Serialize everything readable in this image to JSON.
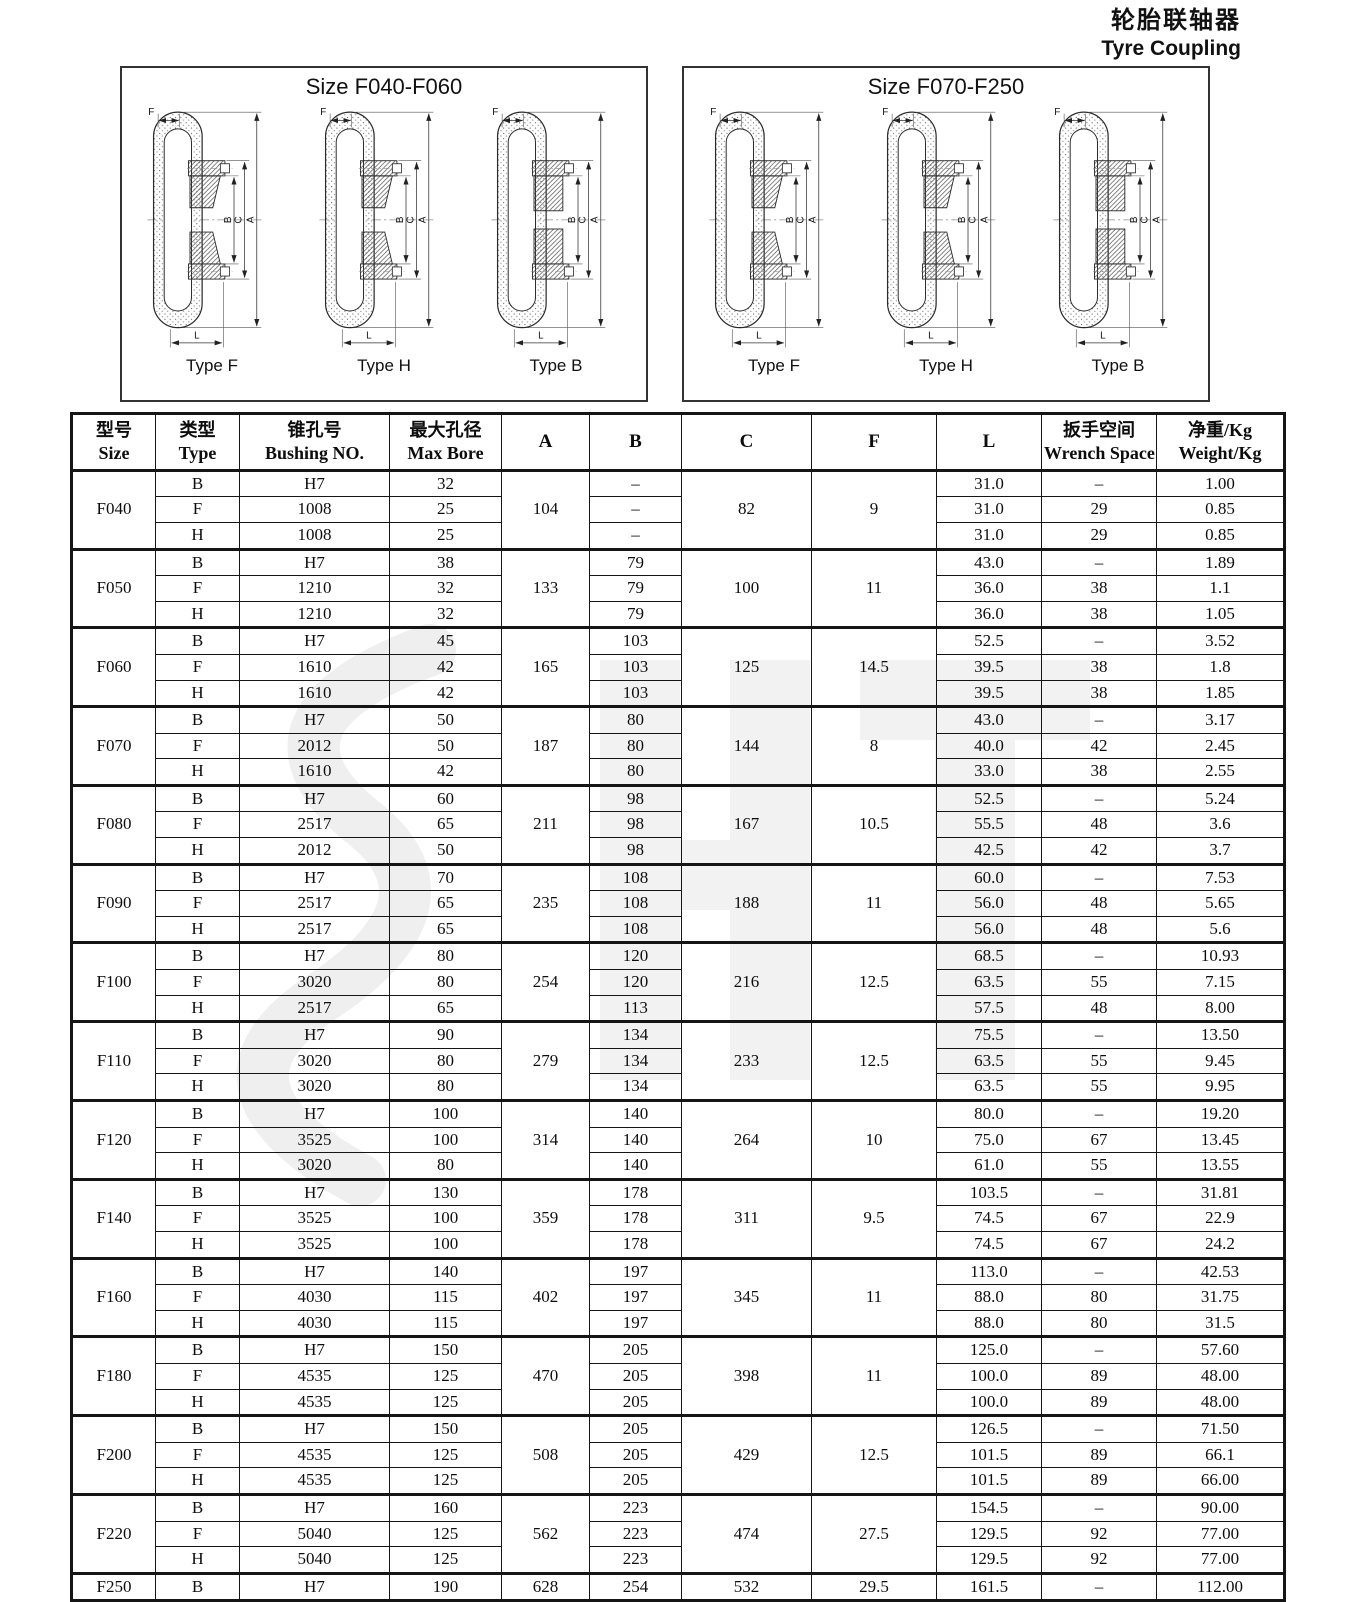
{
  "page": {
    "title_zh": "轮胎联轴器",
    "title_en": "Tyre Coupling"
  },
  "diagram_labels": {
    "f": "F",
    "b": "B",
    "c": "C",
    "a": "A",
    "l": "L"
  },
  "diagrams": [
    {
      "title": "Size F040-F060",
      "types": [
        "Type F",
        "Type H",
        "Type B"
      ]
    },
    {
      "title": "Size F070-F250",
      "types": [
        "Type F",
        "Type H",
        "Type B"
      ]
    }
  ],
  "table": {
    "headers": {
      "size_zh": "型号",
      "size_en": "Size",
      "type_zh": "类型",
      "type_en": "Type",
      "bushing_zh": "锥孔号",
      "bushing_en": "Bushing NO.",
      "bore_zh": "最大孔径",
      "bore_en": "Max Bore",
      "a": "A",
      "b": "B",
      "c": "C",
      "f": "F",
      "l": "L",
      "wrench_zh": "扳手空间",
      "wrench_en": "Wrench Space",
      "weight_zh": "净重/Kg",
      "weight_en": "Weight/Kg"
    },
    "groups": [
      {
        "size": "F040",
        "a": "104",
        "c": "82",
        "f": "9",
        "rows": [
          {
            "type": "B",
            "bushing": "H7",
            "bore": "32",
            "b": "–",
            "l": "31.0",
            "wrench": "–",
            "weight": "1.00"
          },
          {
            "type": "F",
            "bushing": "1008",
            "bore": "25",
            "b": "–",
            "l": "31.0",
            "wrench": "29",
            "weight": "0.85"
          },
          {
            "type": "H",
            "bushing": "1008",
            "bore": "25",
            "b": "–",
            "l": "31.0",
            "wrench": "29",
            "weight": "0.85"
          }
        ]
      },
      {
        "size": "F050",
        "a": "133",
        "c": "100",
        "f": "11",
        "rows": [
          {
            "type": "B",
            "bushing": "H7",
            "bore": "38",
            "b": "79",
            "l": "43.0",
            "wrench": "–",
            "weight": "1.89"
          },
          {
            "type": "F",
            "bushing": "1210",
            "bore": "32",
            "b": "79",
            "l": "36.0",
            "wrench": "38",
            "weight": "1.1"
          },
          {
            "type": "H",
            "bushing": "1210",
            "bore": "32",
            "b": "79",
            "l": "36.0",
            "wrench": "38",
            "weight": "1.05"
          }
        ]
      },
      {
        "size": "F060",
        "a": "165",
        "c": "125",
        "f": "14.5",
        "rows": [
          {
            "type": "B",
            "bushing": "H7",
            "bore": "45",
            "b": "103",
            "l": "52.5",
            "wrench": "–",
            "weight": "3.52"
          },
          {
            "type": "F",
            "bushing": "1610",
            "bore": "42",
            "b": "103",
            "l": "39.5",
            "wrench": "38",
            "weight": "1.8"
          },
          {
            "type": "H",
            "bushing": "1610",
            "bore": "42",
            "b": "103",
            "l": "39.5",
            "wrench": "38",
            "weight": "1.85"
          }
        ]
      },
      {
        "size": "F070",
        "a": "187",
        "c": "144",
        "f": "8",
        "rows": [
          {
            "type": "B",
            "bushing": "H7",
            "bore": "50",
            "b": "80",
            "l": "43.0",
            "wrench": "–",
            "weight": "3.17"
          },
          {
            "type": "F",
            "bushing": "2012",
            "bore": "50",
            "b": "80",
            "l": "40.0",
            "wrench": "42",
            "weight": "2.45"
          },
          {
            "type": "H",
            "bushing": "1610",
            "bore": "42",
            "b": "80",
            "l": "33.0",
            "wrench": "38",
            "weight": "2.55"
          }
        ]
      },
      {
        "size": "F080",
        "a": "211",
        "c": "167",
        "f": "10.5",
        "rows": [
          {
            "type": "B",
            "bushing": "H7",
            "bore": "60",
            "b": "98",
            "l": "52.5",
            "wrench": "–",
            "weight": "5.24"
          },
          {
            "type": "F",
            "bushing": "2517",
            "bore": "65",
            "b": "98",
            "l": "55.5",
            "wrench": "48",
            "weight": "3.6"
          },
          {
            "type": "H",
            "bushing": "2012",
            "bore": "50",
            "b": "98",
            "l": "42.5",
            "wrench": "42",
            "weight": "3.7"
          }
        ]
      },
      {
        "size": "F090",
        "a": "235",
        "c": "188",
        "f": "11",
        "rows": [
          {
            "type": "B",
            "bushing": "H7",
            "bore": "70",
            "b": "108",
            "l": "60.0",
            "wrench": "–",
            "weight": "7.53"
          },
          {
            "type": "F",
            "bushing": "2517",
            "bore": "65",
            "b": "108",
            "l": "56.0",
            "wrench": "48",
            "weight": "5.65"
          },
          {
            "type": "H",
            "bushing": "2517",
            "bore": "65",
            "b": "108",
            "l": "56.0",
            "wrench": "48",
            "weight": "5.6"
          }
        ]
      },
      {
        "size": "F100",
        "a": "254",
        "c": "216",
        "f": "12.5",
        "rows": [
          {
            "type": "B",
            "bushing": "H7",
            "bore": "80",
            "b": "120",
            "l": "68.5",
            "wrench": "–",
            "weight": "10.93"
          },
          {
            "type": "F",
            "bushing": "3020",
            "bore": "80",
            "b": "120",
            "l": "63.5",
            "wrench": "55",
            "weight": "7.15"
          },
          {
            "type": "H",
            "bushing": "2517",
            "bore": "65",
            "b": "113",
            "l": "57.5",
            "wrench": "48",
            "weight": "8.00"
          }
        ]
      },
      {
        "size": "F110",
        "a": "279",
        "c": "233",
        "f": "12.5",
        "rows": [
          {
            "type": "B",
            "bushing": "H7",
            "bore": "90",
            "b": "134",
            "l": "75.5",
            "wrench": "–",
            "weight": "13.50"
          },
          {
            "type": "F",
            "bushing": "3020",
            "bore": "80",
            "b": "134",
            "l": "63.5",
            "wrench": "55",
            "weight": "9.45"
          },
          {
            "type": "H",
            "bushing": "3020",
            "bore": "80",
            "b": "134",
            "l": "63.5",
            "wrench": "55",
            "weight": "9.95"
          }
        ]
      },
      {
        "size": "F120",
        "a": "314",
        "c": "264",
        "f": "10",
        "rows": [
          {
            "type": "B",
            "bushing": "H7",
            "bore": "100",
            "b": "140",
            "l": "80.0",
            "wrench": "–",
            "weight": "19.20"
          },
          {
            "type": "F",
            "bushing": "3525",
            "bore": "100",
            "b": "140",
            "l": "75.0",
            "wrench": "67",
            "weight": "13.45"
          },
          {
            "type": "H",
            "bushing": "3020",
            "bore": "80",
            "b": "140",
            "l": "61.0",
            "wrench": "55",
            "weight": "13.55"
          }
        ]
      },
      {
        "size": "F140",
        "a": "359",
        "c": "311",
        "f": "9.5",
        "rows": [
          {
            "type": "B",
            "bushing": "H7",
            "bore": "130",
            "b": "178",
            "l": "103.5",
            "wrench": "–",
            "weight": "31.81"
          },
          {
            "type": "F",
            "bushing": "3525",
            "bore": "100",
            "b": "178",
            "l": "74.5",
            "wrench": "67",
            "weight": "22.9"
          },
          {
            "type": "H",
            "bushing": "3525",
            "bore": "100",
            "b": "178",
            "l": "74.5",
            "wrench": "67",
            "weight": "24.2"
          }
        ]
      },
      {
        "size": "F160",
        "a": "402",
        "c": "345",
        "f": "11",
        "rows": [
          {
            "type": "B",
            "bushing": "H7",
            "bore": "140",
            "b": "197",
            "l": "113.0",
            "wrench": "–",
            "weight": "42.53"
          },
          {
            "type": "F",
            "bushing": "4030",
            "bore": "115",
            "b": "197",
            "l": "88.0",
            "wrench": "80",
            "weight": "31.75"
          },
          {
            "type": "H",
            "bushing": "4030",
            "bore": "115",
            "b": "197",
            "l": "88.0",
            "wrench": "80",
            "weight": "31.5"
          }
        ]
      },
      {
        "size": "F180",
        "a": "470",
        "c": "398",
        "f": "11",
        "rows": [
          {
            "type": "B",
            "bushing": "H7",
            "bore": "150",
            "b": "205",
            "l": "125.0",
            "wrench": "–",
            "weight": "57.60"
          },
          {
            "type": "F",
            "bushing": "4535",
            "bore": "125",
            "b": "205",
            "l": "100.0",
            "wrench": "89",
            "weight": "48.00"
          },
          {
            "type": "H",
            "bushing": "4535",
            "bore": "125",
            "b": "205",
            "l": "100.0",
            "wrench": "89",
            "weight": "48.00"
          }
        ]
      },
      {
        "size": "F200",
        "a": "508",
        "c": "429",
        "f": "12.5",
        "rows": [
          {
            "type": "B",
            "bushing": "H7",
            "bore": "150",
            "b": "205",
            "l": "126.5",
            "wrench": "–",
            "weight": "71.50"
          },
          {
            "type": "F",
            "bushing": "4535",
            "bore": "125",
            "b": "205",
            "l": "101.5",
            "wrench": "89",
            "weight": "66.1"
          },
          {
            "type": "H",
            "bushing": "4535",
            "bore": "125",
            "b": "205",
            "l": "101.5",
            "wrench": "89",
            "weight": "66.00"
          }
        ]
      },
      {
        "size": "F220",
        "a": "562",
        "c": "474",
        "f": "27.5",
        "rows": [
          {
            "type": "B",
            "bushing": "H7",
            "bore": "160",
            "b": "223",
            "l": "154.5",
            "wrench": "–",
            "weight": "90.00"
          },
          {
            "type": "F",
            "bushing": "5040",
            "bore": "125",
            "b": "223",
            "l": "129.5",
            "wrench": "92",
            "weight": "77.00"
          },
          {
            "type": "H",
            "bushing": "5040",
            "bore": "125",
            "b": "223",
            "l": "129.5",
            "wrench": "92",
            "weight": "77.00"
          }
        ]
      },
      {
        "size": "F250",
        "a": "628",
        "c": "532",
        "f": "29.5",
        "rows": [
          {
            "type": "B",
            "bushing": "H7",
            "bore": "190",
            "b": "254",
            "l": "161.5",
            "wrench": "–",
            "weight": "112.00"
          }
        ]
      }
    ]
  }
}
